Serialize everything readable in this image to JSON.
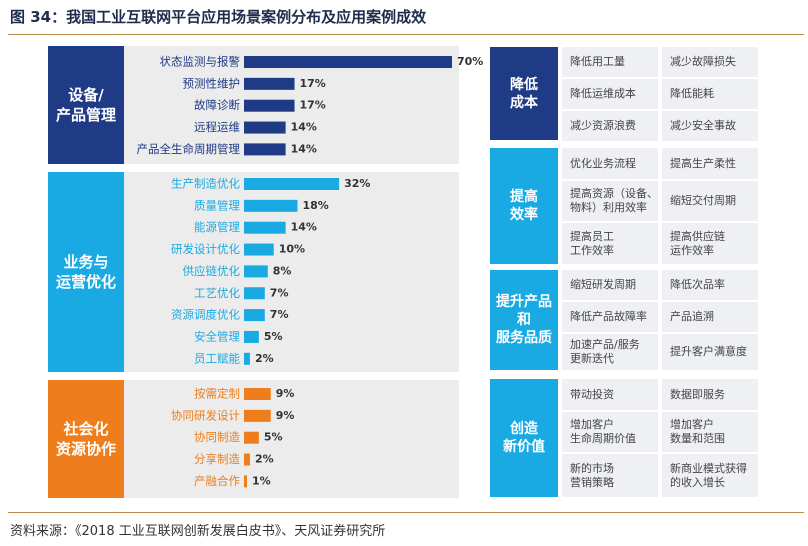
{
  "title": "图 34：我国工业互联网平台应用场景案例分布及应用案例成效",
  "source": "资料来源：《2018 工业互联网创新发展白皮书》、天风证券研究所",
  "colors": {
    "navy": "#1f3b86",
    "cyan": "#1aaae3",
    "orange": "#ee7d1b",
    "panel": "#ececec",
    "cell": "#eef0f3"
  },
  "groups": [
    {
      "label_line1": "设备/",
      "label_line2": "产品管理",
      "color": "#1f3b86"
    },
    {
      "label_line1": "业务与",
      "label_line2": "运营优化",
      "color": "#1aaae3"
    },
    {
      "label_line1": "社会化",
      "label_line2": "资源协作",
      "color": "#ee7d1b"
    }
  ],
  "chart_data": {
    "type": "bar",
    "orientation": "horizontal",
    "unit": "%",
    "xlim": [
      0,
      70
    ],
    "categories": [
      "状态监测与报警",
      "预测性维护",
      "故障诊断",
      "远程运维",
      "产品全生命周期管理",
      "生产制造优化",
      "质量管理",
      "能源管理",
      "研发设计优化",
      "供应链优化",
      "工艺优化",
      "资源调度优化",
      "安全管理",
      "员工赋能",
      "按需定制",
      "协同研发设计",
      "协同制造",
      "分享制造",
      "产融合作"
    ],
    "values": [
      70,
      17,
      17,
      14,
      14,
      32,
      18,
      14,
      10,
      8,
      7,
      7,
      5,
      2,
      9,
      9,
      5,
      2,
      1
    ],
    "value_labels": [
      "70%",
      "17%",
      "17%",
      "14%",
      "14%",
      "32%",
      "18%",
      "14%",
      "10%",
      "8%",
      "7%",
      "7%",
      "5%",
      "2%",
      "9%",
      "9%",
      "5%",
      "2%",
      "1%"
    ],
    "group_index": [
      0,
      0,
      0,
      0,
      0,
      1,
      1,
      1,
      1,
      1,
      1,
      1,
      1,
      1,
      2,
      2,
      2,
      2,
      2
    ]
  },
  "benefits": [
    {
      "category_lines": [
        "降低",
        "成本"
      ],
      "color": "#1f3b86",
      "cells": [
        [
          "降低用工量"
        ],
        [
          "减少故障损失"
        ],
        [
          "降低运维成本"
        ],
        [
          "降低能耗"
        ],
        [
          "减少资源浪费"
        ],
        [
          "减少安全事故"
        ]
      ]
    },
    {
      "category_lines": [
        "提高",
        "效率"
      ],
      "color": "#1aaae3",
      "cells": [
        [
          "优化业务流程"
        ],
        [
          "提高生产柔性"
        ],
        [
          "提高资源（设备、",
          "物料）利用效率"
        ],
        [
          "缩短交付周期"
        ],
        [
          "提高员工",
          "工作效率"
        ],
        [
          "提高供应链",
          "运作效率"
        ]
      ]
    },
    {
      "category_lines": [
        "提升产品",
        "和",
        "服务品质"
      ],
      "color": "#1aaae3",
      "cells": [
        [
          "缩短研发周期"
        ],
        [
          "降低次品率"
        ],
        [
          "降低产品故障率"
        ],
        [
          "产品追溯"
        ],
        [
          "加速产品/服务",
          "更新迭代"
        ],
        [
          "提升客户满意度"
        ]
      ]
    },
    {
      "category_lines": [
        "创造",
        "新价值"
      ],
      "color": "#1aaae3",
      "cells": [
        [
          "带动投资"
        ],
        [
          "数据即服务"
        ],
        [
          "增加客户",
          "生命周期价值"
        ],
        [
          "增加客户",
          "数量和范围"
        ],
        [
          "新的市场",
          "营销策略"
        ],
        [
          "新商业模式获得",
          "的收入增长"
        ]
      ]
    }
  ]
}
